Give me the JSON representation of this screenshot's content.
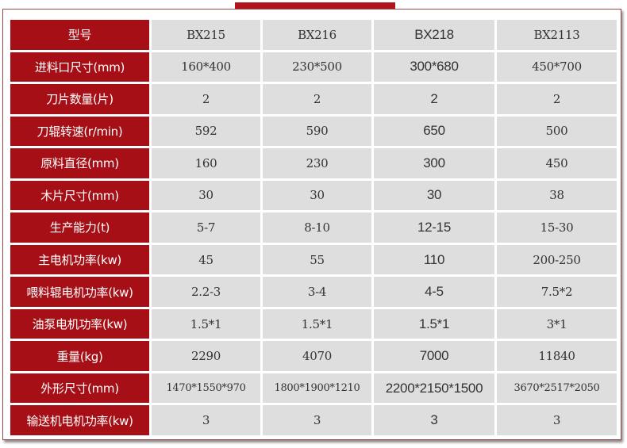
{
  "header": {
    "label": "型号",
    "models": [
      "BX215",
      "BX216",
      "BX218",
      "BX2113"
    ]
  },
  "rows": [
    {
      "label": "进料口尺寸(mm)",
      "values": [
        "160*400",
        "230*500",
        "300*680",
        "450*700"
      ]
    },
    {
      "label": "刀片数量(片)",
      "values": [
        "2",
        "2",
        "2",
        "2"
      ]
    },
    {
      "label": "刀辊转速(r/min)",
      "values": [
        "592",
        "590",
        "650",
        "500"
      ]
    },
    {
      "label": "原料直径(mm)",
      "values": [
        "160",
        "230",
        "300",
        "450"
      ]
    },
    {
      "label": "木片尺寸(mm)",
      "values": [
        "30",
        "30",
        "30",
        "38"
      ]
    },
    {
      "label": "生产能力(t)",
      "values": [
        "5-7",
        "8-10",
        "12-15",
        "15-30"
      ]
    },
    {
      "label": "主电机功率(kw)",
      "values": [
        "45",
        "55",
        "110",
        "200-250"
      ]
    },
    {
      "label": "喂料辊电机功率(kw)",
      "values": [
        "2.2-3",
        "3-4",
        "4-5",
        "7.5*2"
      ]
    },
    {
      "label": "油泵电机功率(kw)",
      "values": [
        "1.5*1",
        "1.5*1",
        "1.5*1",
        "3*1"
      ]
    },
    {
      "label": "重量(kg)",
      "values": [
        "2290",
        "4070",
        "7000",
        "11840"
      ]
    },
    {
      "label": "外形尺寸(mm)",
      "values": [
        "1470*1550*970",
        "1800*1900*1210",
        "2200*2150*1500",
        "3670*2517*2050"
      ]
    },
    {
      "label": "输送机电机功率(kw)",
      "values": [
        "3",
        "3",
        "3",
        "3"
      ]
    }
  ],
  "colors": {
    "header_red": "#a70f16",
    "cell_gray": "#dedede"
  }
}
